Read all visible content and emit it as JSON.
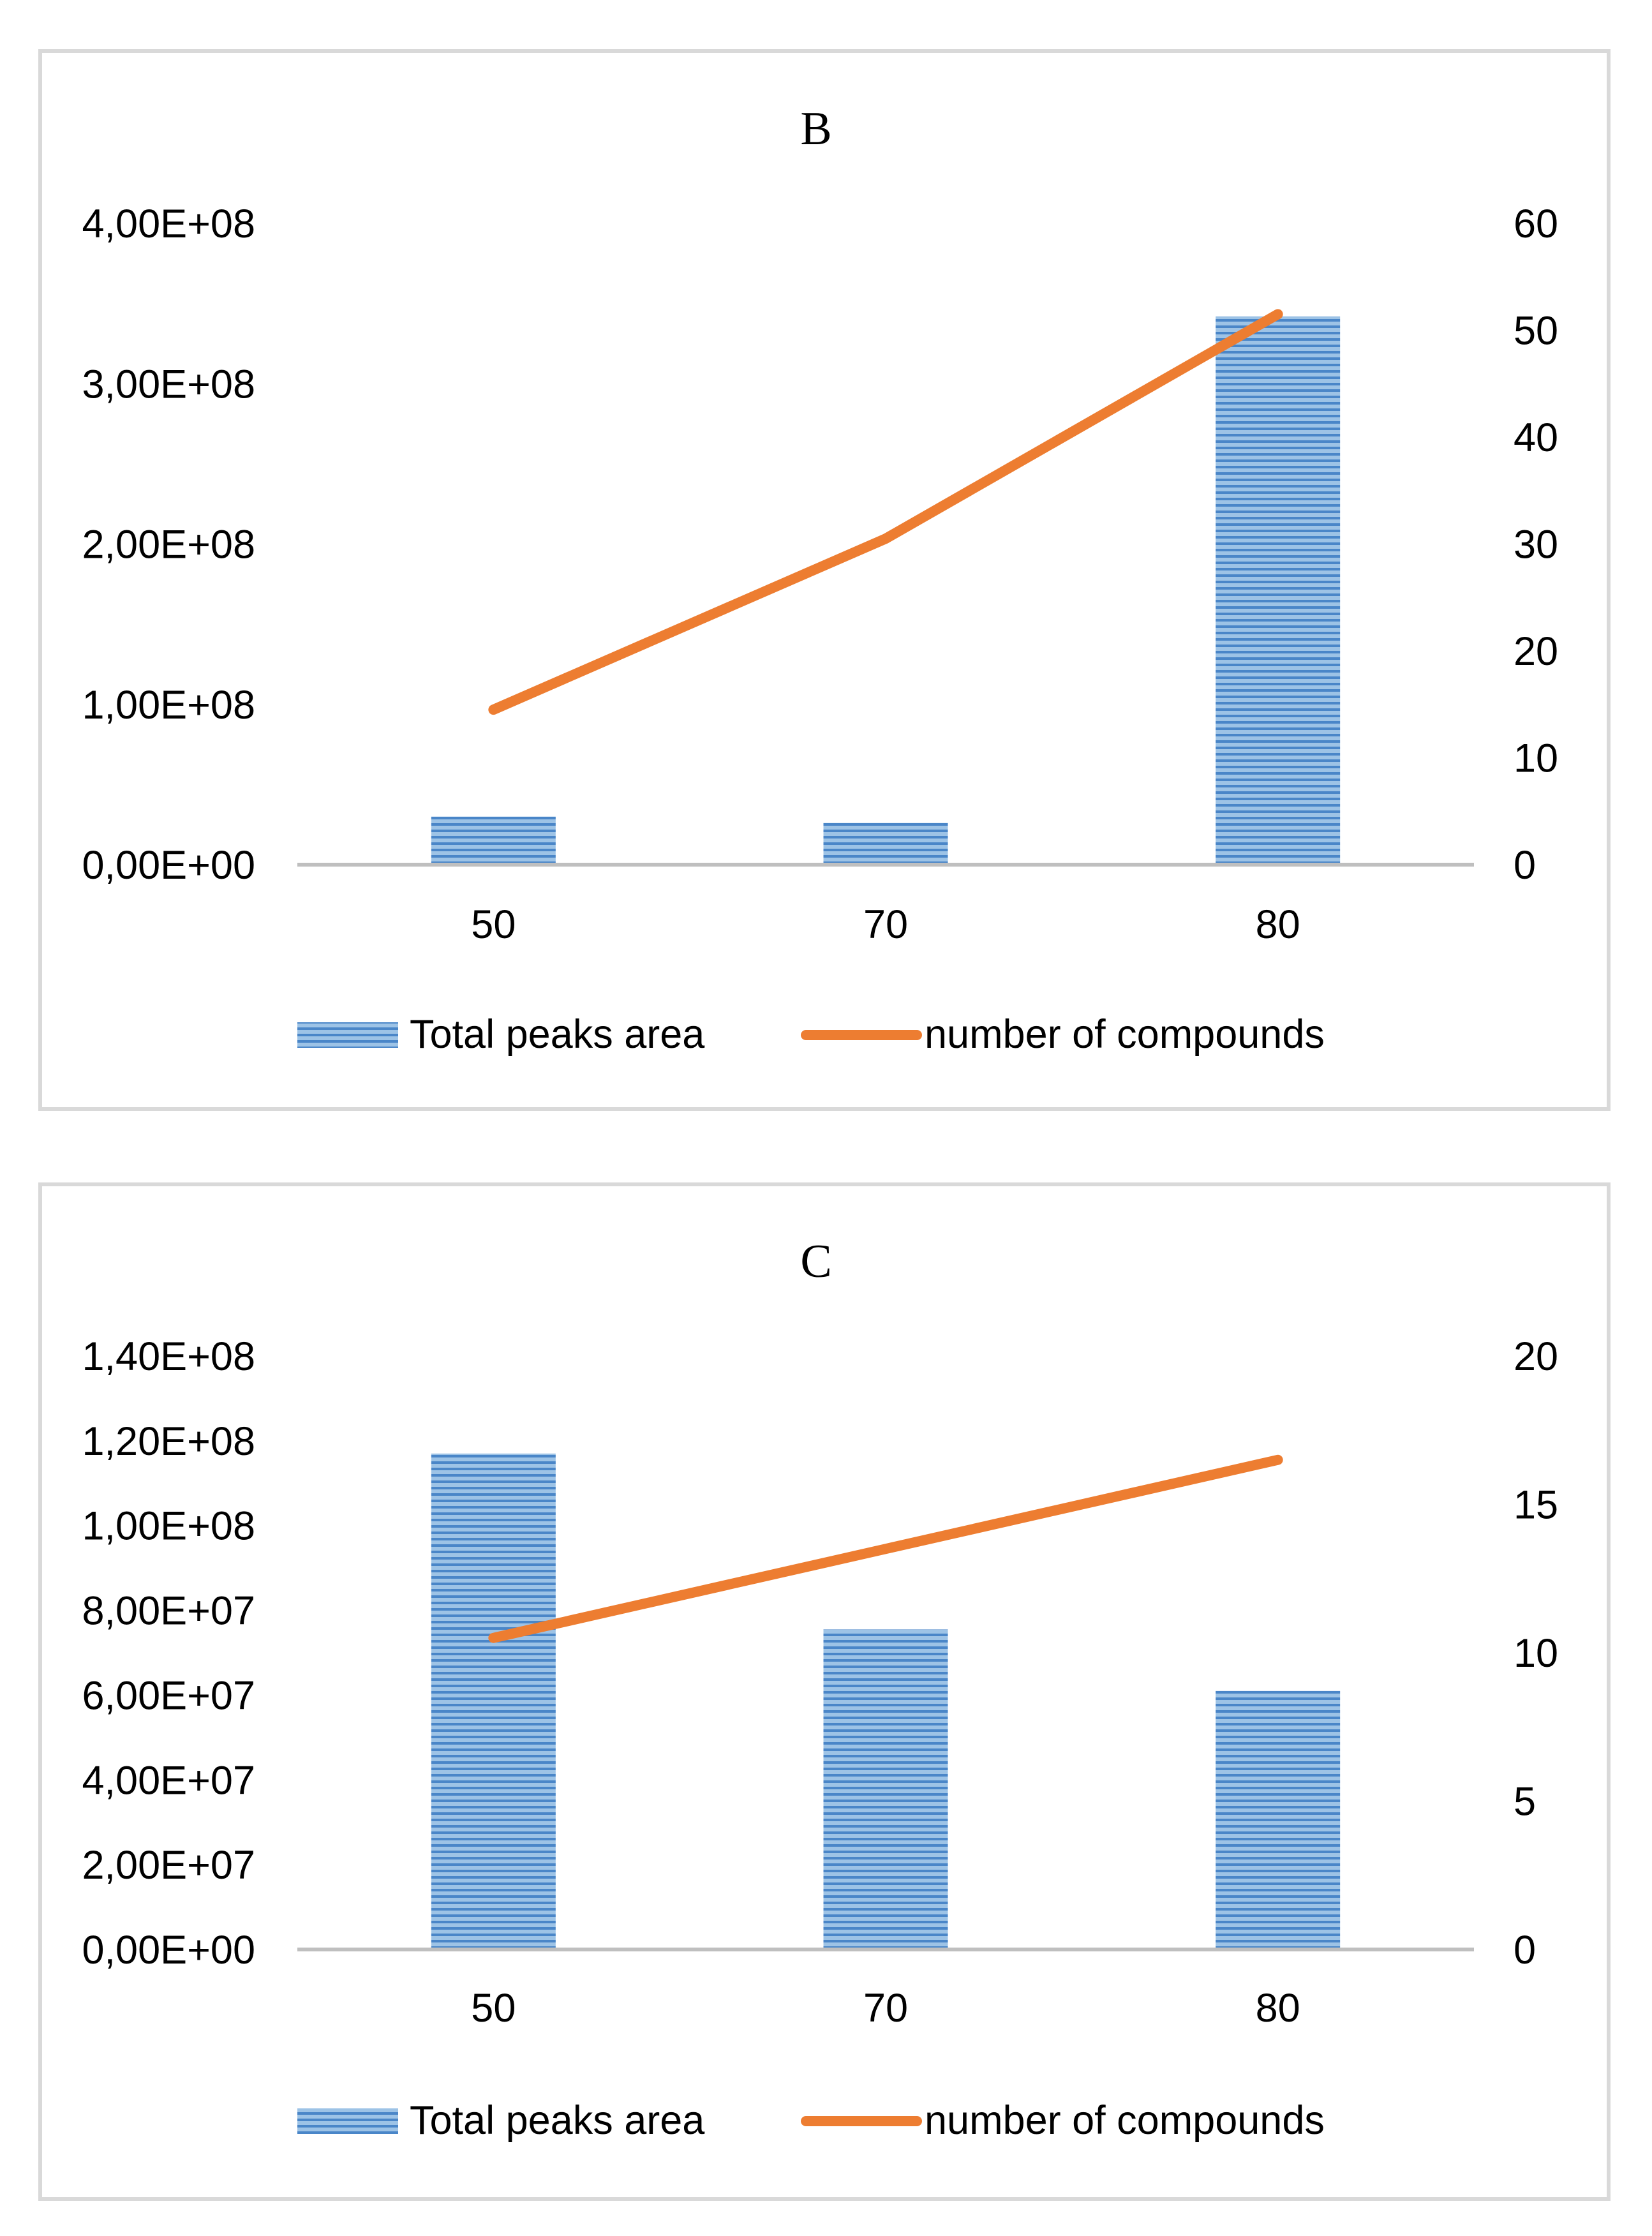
{
  "colors": {
    "bar_fill": "#9dc3e6",
    "bar_stripe": "#4a86c8",
    "line": "#ed7d31",
    "axis": "#bfbfbf",
    "frame": "#d9d9d9"
  },
  "chart_data": [
    {
      "type": "bar+line",
      "title": "B",
      "xlabel": "",
      "categories": [
        "50",
        "70",
        "80"
      ],
      "series": [
        {
          "name": "Total peaks area",
          "kind": "bar",
          "axis": "left",
          "values": [
            30000000,
            26000000,
            342000000
          ]
        },
        {
          "name": "number of compounds",
          "kind": "line",
          "axis": "right",
          "values": [
            14.5,
            30.5,
            51.5
          ]
        }
      ],
      "y_left": {
        "ylim": [
          0,
          400000000
        ],
        "tick_labels": [
          "0,00E+00",
          "1,00E+08",
          "2,00E+08",
          "3,00E+08",
          "4,00E+08"
        ]
      },
      "y_right": {
        "ylim": [
          0,
          60
        ],
        "tick_labels": [
          "0",
          "10",
          "20",
          "30",
          "40",
          "50",
          "60"
        ]
      },
      "legend": "bottom",
      "grid": false
    },
    {
      "type": "bar+line",
      "title": "C",
      "xlabel": "",
      "categories": [
        "50",
        "70",
        "80"
      ],
      "series": [
        {
          "name": "Total peaks area",
          "kind": "bar",
          "axis": "left",
          "values": [
            117000000,
            75500000,
            61000000
          ]
        },
        {
          "name": "number of compounds",
          "kind": "line",
          "axis": "right",
          "values": [
            10.5,
            13.5,
            16.5
          ]
        }
      ],
      "y_left": {
        "ylim": [
          0,
          140000000
        ],
        "tick_labels": [
          "0,00E+00",
          "2,00E+07",
          "4,00E+07",
          "6,00E+07",
          "8,00E+07",
          "1,00E+08",
          "1,20E+08",
          "1,40E+08"
        ]
      },
      "y_right": {
        "ylim": [
          0,
          20
        ],
        "tick_labels": [
          "0",
          "5",
          "10",
          "15",
          "20"
        ]
      },
      "legend": "bottom",
      "grid": false
    }
  ]
}
